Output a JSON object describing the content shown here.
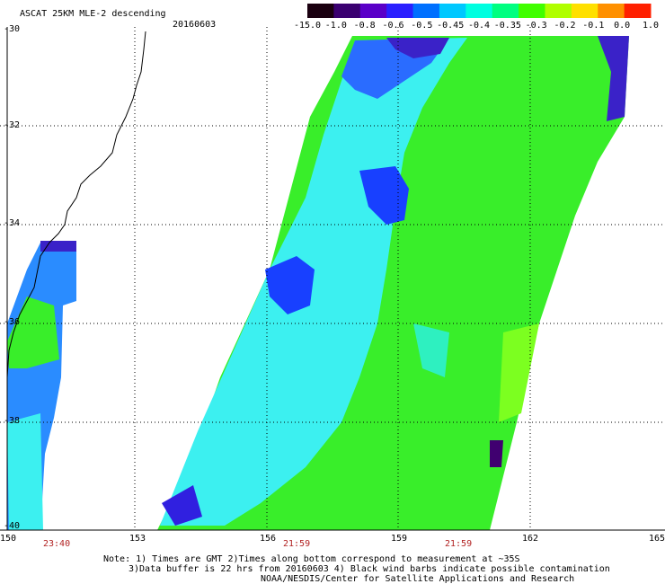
{
  "header": {
    "title": "ASCAT 25KM MLE-2 descending",
    "date": "20160603"
  },
  "colorbar": {
    "labels": [
      "-15.0",
      "-1.0",
      "-0.8",
      "-0.6",
      "-0.5",
      "-0.45",
      "-0.4",
      "-0.35",
      "-0.3",
      "-0.2",
      "-0.1",
      "0.0",
      "1.0"
    ],
    "colors": [
      "#1a0010",
      "#3a0070",
      "#5a00c8",
      "#2a20ff",
      "#0070ff",
      "#00c8ff",
      "#00ffe0",
      "#00ff80",
      "#40ff00",
      "#b0ff00",
      "#ffe000",
      "#ff9000",
      "#ff2000"
    ]
  },
  "axes": {
    "lon_labels": [
      "150",
      "153",
      "156",
      "159",
      "162",
      "165"
    ],
    "lat_labels": [
      "-30",
      "-32",
      "-34",
      "-36",
      "-38",
      "-40"
    ]
  },
  "pass_times": [
    "23:40",
    "21:59",
    "21:59"
  ],
  "notes": {
    "line1": "Note: 1) Times are GMT 2)Times along bottom correspond to measurement at ~35S",
    "line2": "3)Data buffer is 22 hrs from 20160603 4) Black wind barbs indicate possible contamination",
    "line3": "NOAA/NESDIS/Center for Satellite Applications and Research"
  }
}
